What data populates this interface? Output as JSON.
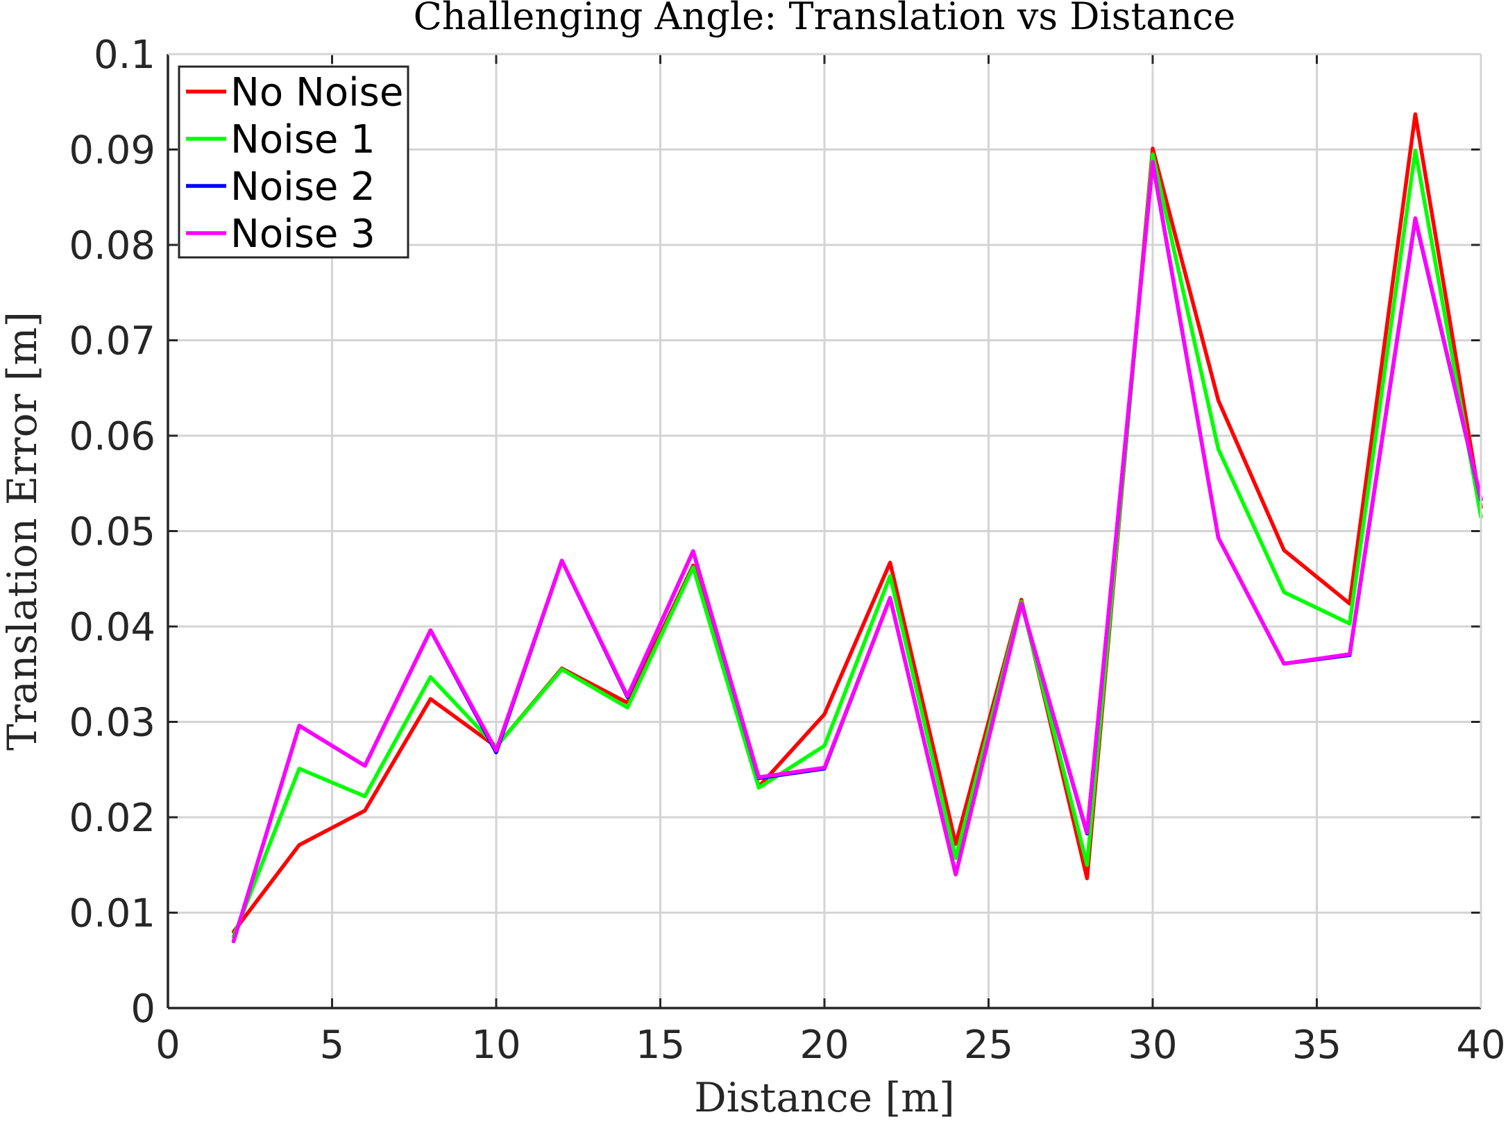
{
  "chart_data": {
    "type": "line",
    "title": "Challenging Angle: Translation vs Distance",
    "xlabel": "Distance [m]",
    "ylabel": "Translation Error [m]",
    "xlim": [
      0,
      40
    ],
    "ylim": [
      0,
      0.1
    ],
    "grid": true,
    "legend_position": "top-left",
    "x_ticks": [
      "0",
      "5",
      "10",
      "15",
      "20",
      "25",
      "30",
      "35",
      "40"
    ],
    "y_ticks": [
      "0",
      "0.01",
      "0.02",
      "0.03",
      "0.04",
      "0.05",
      "0.06",
      "0.07",
      "0.08",
      "0.09",
      "0.1"
    ],
    "x": [
      2,
      4,
      6,
      8,
      10,
      12,
      14,
      16,
      18,
      20,
      22,
      24,
      26,
      28,
      30,
      32,
      34,
      36,
      38,
      40
    ],
    "series": [
      {
        "name": "No Noise",
        "color": "#ff0000",
        "values": [
          0.008,
          0.0171,
          0.0207,
          0.0324,
          0.0274,
          0.0356,
          0.032,
          0.0464,
          0.0232,
          0.0308,
          0.0467,
          0.0172,
          0.0428,
          0.0136,
          0.0901,
          0.0637,
          0.048,
          0.0424,
          0.0937,
          0.0525
        ]
      },
      {
        "name": "Noise 1",
        "color": "#00ff00",
        "values": [
          0.0075,
          0.0251,
          0.0222,
          0.0347,
          0.0274,
          0.0355,
          0.0315,
          0.0462,
          0.0231,
          0.0275,
          0.0453,
          0.0157,
          0.0426,
          0.015,
          0.0895,
          0.0586,
          0.0436,
          0.0403,
          0.0899,
          0.0515
        ]
      },
      {
        "name": "Noise 2",
        "color": "#0000ff",
        "values": [
          0.007,
          0.0296,
          0.0254,
          0.0396,
          0.0268,
          0.0469,
          0.0326,
          0.0479,
          0.0241,
          0.0251,
          0.043,
          0.014,
          0.0424,
          0.0183,
          0.0886,
          0.0493,
          0.0361,
          0.037,
          0.0827,
          0.0533
        ]
      },
      {
        "name": "Noise 3",
        "color": "#ff00ff",
        "values": [
          0.007,
          0.0296,
          0.0254,
          0.0396,
          0.027,
          0.0469,
          0.0327,
          0.0479,
          0.0242,
          0.0252,
          0.043,
          0.014,
          0.0424,
          0.0184,
          0.0887,
          0.0493,
          0.0361,
          0.0371,
          0.0828,
          0.0534
        ]
      }
    ]
  }
}
